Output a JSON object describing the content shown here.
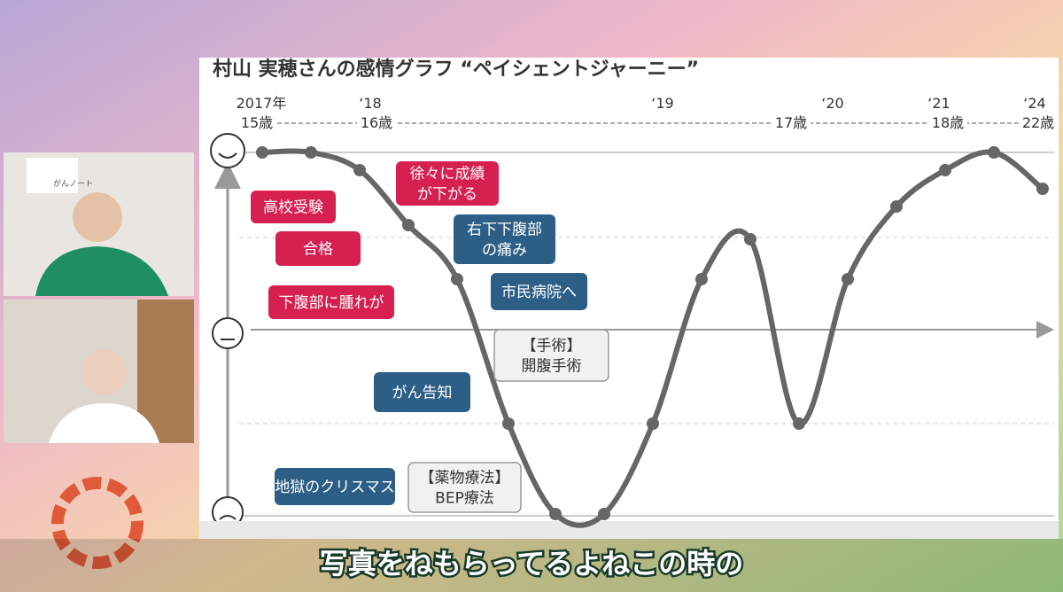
{
  "slide": {
    "title": "村山 実穂さんの感情グラフ “ペイシェントジャーニー”",
    "years": [
      "2017年",
      "‘18",
      "‘19",
      "‘20",
      "‘21",
      "‘24"
    ],
    "ages": [
      "15歳",
      "16歳",
      "17歳",
      "18歳",
      "22歳"
    ],
    "callouts": [
      {
        "lines": [
          "徐々に成績",
          "が下がる"
        ]
      },
      {
        "lines": [
          "高校受験"
        ]
      },
      {
        "lines": [
          "合格"
        ]
      },
      {
        "lines": [
          "下腹部に腫れが"
        ]
      },
      {
        "lines": [
          "右下下腹部",
          "の痛み"
        ]
      },
      {
        "lines": [
          "市民病院へ"
        ]
      },
      {
        "lines": [
          "【手術】",
          "開腹手術"
        ]
      },
      {
        "lines": [
          "がん告知"
        ]
      },
      {
        "lines": [
          "地獄のクリスマス"
        ]
      },
      {
        "lines": [
          "【薬物療法】",
          "BEP療法"
        ]
      }
    ]
  },
  "logo": "がんノート",
  "caption": "写真をねもらってるよねこの時の"
}
